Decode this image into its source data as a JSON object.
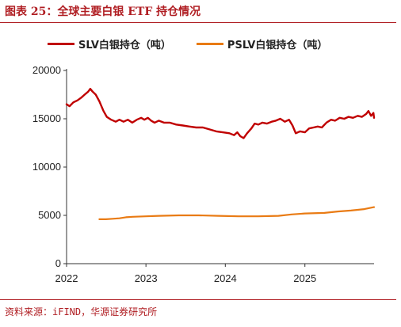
{
  "title": "图表 25：全球主要白银 ETF 持仓情况",
  "source": "资料来源：iFIND，华源证券研究所",
  "colors": {
    "accent": "#b01e23",
    "slv": "#c00000",
    "pslv": "#e97b14"
  },
  "chart_data": {
    "type": "line",
    "title": "",
    "xlabel": "",
    "ylabel": "",
    "ylim": [
      0,
      20000
    ],
    "yticks": [
      0,
      5000,
      10000,
      15000,
      20000
    ],
    "xlim": [
      "2022-01-01",
      "2025-11-15"
    ],
    "xticks": [
      "2022",
      "2023",
      "2024",
      "2025"
    ],
    "grid": false,
    "legend_position": "top",
    "series": [
      {
        "name": "SLV白银持仓（吨）",
        "color": "#c00000",
        "points": [
          [
            "2022-01-01",
            16500
          ],
          [
            "2022-01-15",
            16300
          ],
          [
            "2022-02-01",
            16700
          ],
          [
            "2022-02-20",
            16900
          ],
          [
            "2022-03-10",
            17200
          ],
          [
            "2022-03-25",
            17500
          ],
          [
            "2022-04-10",
            17800
          ],
          [
            "2022-04-20",
            18100
          ],
          [
            "2022-05-01",
            17800
          ],
          [
            "2022-05-15",
            17500
          ],
          [
            "2022-06-01",
            16800
          ],
          [
            "2022-06-20",
            15800
          ],
          [
            "2022-07-05",
            15200
          ],
          [
            "2022-07-25",
            14900
          ],
          [
            "2022-08-15",
            14700
          ],
          [
            "2022-09-01",
            14900
          ],
          [
            "2022-09-20",
            14700
          ],
          [
            "2022-10-10",
            14900
          ],
          [
            "2022-10-30",
            14600
          ],
          [
            "2022-11-20",
            14900
          ],
          [
            "2022-12-10",
            15100
          ],
          [
            "2022-12-25",
            14900
          ],
          [
            "2023-01-10",
            15100
          ],
          [
            "2023-01-25",
            14800
          ],
          [
            "2023-02-10",
            14600
          ],
          [
            "2023-03-01",
            14800
          ],
          [
            "2023-03-25",
            14600
          ],
          [
            "2023-04-20",
            14600
          ],
          [
            "2023-05-20",
            14400
          ],
          [
            "2023-06-20",
            14300
          ],
          [
            "2023-07-20",
            14200
          ],
          [
            "2023-08-20",
            14100
          ],
          [
            "2023-09-20",
            14100
          ],
          [
            "2023-10-20",
            13900
          ],
          [
            "2023-11-20",
            13700
          ],
          [
            "2023-12-20",
            13600
          ],
          [
            "2024-01-20",
            13500
          ],
          [
            "2024-02-10",
            13300
          ],
          [
            "2024-02-25",
            13600
          ],
          [
            "2024-03-10",
            13200
          ],
          [
            "2024-03-25",
            13000
          ],
          [
            "2024-04-10",
            13500
          ],
          [
            "2024-04-30",
            14000
          ],
          [
            "2024-05-15",
            14500
          ],
          [
            "2024-06-01",
            14400
          ],
          [
            "2024-06-20",
            14600
          ],
          [
            "2024-07-10",
            14500
          ],
          [
            "2024-08-01",
            14700
          ],
          [
            "2024-08-20",
            14800
          ],
          [
            "2024-09-10",
            15000
          ],
          [
            "2024-10-01",
            14700
          ],
          [
            "2024-10-20",
            14900
          ],
          [
            "2024-11-05",
            14300
          ],
          [
            "2024-11-20",
            13500
          ],
          [
            "2024-12-10",
            13700
          ],
          [
            "2025-01-01",
            13600
          ],
          [
            "2025-01-20",
            14000
          ],
          [
            "2025-02-10",
            14100
          ],
          [
            "2025-03-01",
            14200
          ],
          [
            "2025-03-20",
            14100
          ],
          [
            "2025-04-10",
            14600
          ],
          [
            "2025-05-01",
            14900
          ],
          [
            "2025-05-20",
            14800
          ],
          [
            "2025-06-10",
            15100
          ],
          [
            "2025-07-01",
            15000
          ],
          [
            "2025-07-20",
            15200
          ],
          [
            "2025-08-10",
            15100
          ],
          [
            "2025-09-01",
            15300
          ],
          [
            "2025-09-20",
            15200
          ],
          [
            "2025-10-10",
            15500
          ],
          [
            "2025-10-20",
            15800
          ],
          [
            "2025-11-01",
            15300
          ],
          [
            "2025-11-12",
            15600
          ],
          [
            "2025-11-15",
            15100
          ]
        ]
      },
      {
        "name": "PSLV白银持仓（吨）",
        "color": "#e97b14",
        "points": [
          [
            "2022-06-01",
            4600
          ],
          [
            "2022-07-01",
            4600
          ],
          [
            "2022-08-01",
            4650
          ],
          [
            "2022-09-01",
            4700
          ],
          [
            "2022-10-01",
            4800
          ],
          [
            "2022-11-01",
            4850
          ],
          [
            "2023-01-01",
            4900
          ],
          [
            "2023-03-01",
            4950
          ],
          [
            "2023-06-01",
            5000
          ],
          [
            "2023-09-01",
            5000
          ],
          [
            "2023-12-01",
            4950
          ],
          [
            "2024-03-01",
            4900
          ],
          [
            "2024-06-01",
            4900
          ],
          [
            "2024-09-01",
            4950
          ],
          [
            "2024-11-01",
            5100
          ],
          [
            "2025-01-01",
            5200
          ],
          [
            "2025-04-01",
            5250
          ],
          [
            "2025-06-01",
            5400
          ],
          [
            "2025-08-01",
            5500
          ],
          [
            "2025-10-01",
            5650
          ],
          [
            "2025-11-15",
            5850
          ]
        ]
      }
    ]
  }
}
